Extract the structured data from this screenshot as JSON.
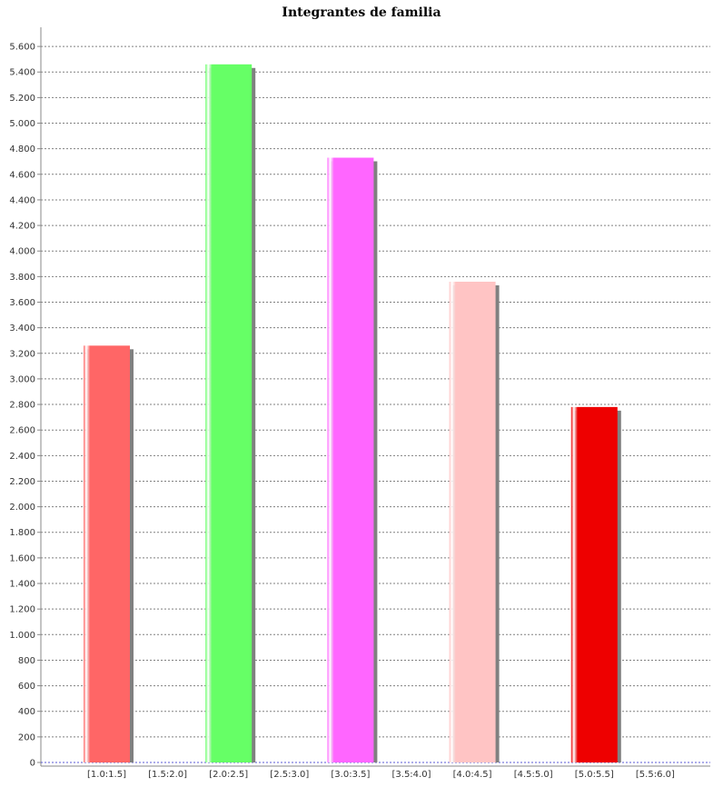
{
  "chart_data": {
    "type": "bar",
    "title": "Integrantes de familia",
    "xlabel": "",
    "ylabel": "",
    "categories": [
      "[1.0:1.5]",
      "[1.5:2.0]",
      "[2.0:2.5]",
      "[2.5:3.0]",
      "[3.0:3.5]",
      "[3.5:4.0]",
      "[4.0:4.5]",
      "[4.5:5.0]",
      "[5.0:5.5]",
      "[5.5:6.0]"
    ],
    "values": [
      3260,
      0,
      5460,
      0,
      4730,
      0,
      3760,
      0,
      2780,
      0
    ],
    "bar_colors": [
      "#ff6666",
      "#66ff66",
      "#66ff66",
      "#66ff66",
      "#ff66ff",
      "#ff66ff",
      "#ffc4c4",
      "#ffc4c4",
      "#ee0000",
      "#ee0000"
    ],
    "ylim": [
      0,
      5750
    ],
    "yticks": [
      0,
      200,
      400,
      600,
      800,
      1000,
      1200,
      1400,
      1600,
      1800,
      2000,
      2200,
      2400,
      2600,
      2800,
      3000,
      3200,
      3400,
      3600,
      3800,
      4000,
      4200,
      4400,
      4600,
      4800,
      5000,
      5200,
      5400,
      5600
    ],
    "ytick_labels": [
      "0",
      "200",
      "400",
      "600",
      "800",
      "1.000",
      "1.200",
      "1.400",
      "1.600",
      "1.800",
      "2.000",
      "2.200",
      "2.400",
      "2.600",
      "2.800",
      "3.000",
      "3.200",
      "3.400",
      "3.600",
      "3.800",
      "4.000",
      "4.200",
      "4.400",
      "4.600",
      "4.800",
      "5.000",
      "5.200",
      "5.400",
      "5.600"
    ],
    "grid": true,
    "legend": "none"
  }
}
